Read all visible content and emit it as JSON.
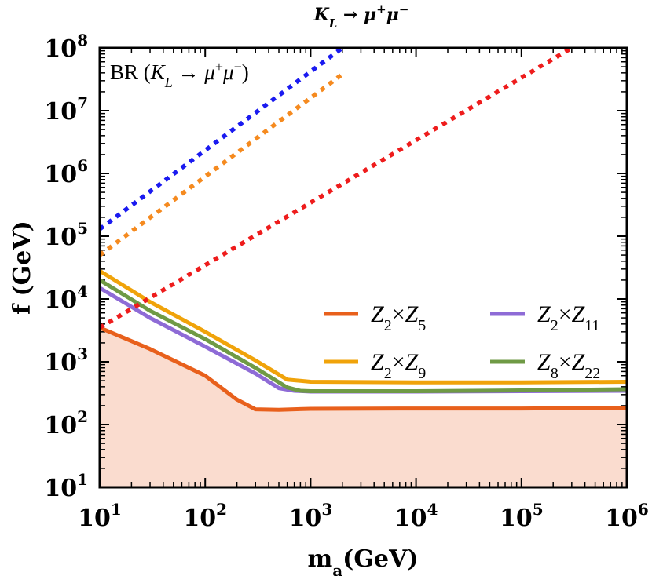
{
  "chart_data": {
    "type": "line",
    "title": "K_L → μ⁺μ⁻",
    "title_parts": {
      "main": "K",
      "sub": "L",
      "rest": " → μ",
      "sup1": "+",
      "mid": "μ",
      "sup2": "−"
    },
    "annotation": {
      "prefix": "BR (",
      "k": "K",
      "sub": "L",
      "arrow": " → μ",
      "sup1": "+",
      "mid": "μ",
      "sup2": "−",
      "suffix": ")"
    },
    "xlabel": {
      "main": "m",
      "sub": "a",
      "rest": "(GeV)"
    },
    "ylabel": "f (GeV)",
    "x_scale": "log",
    "y_scale": "log",
    "xlim": [
      10,
      1000000
    ],
    "ylim": [
      10,
      100000000
    ],
    "x_ticks": [
      {
        "base": "10",
        "exp": "1",
        "value": 10
      },
      {
        "base": "10",
        "exp": "2",
        "value": 100
      },
      {
        "base": "10",
        "exp": "3",
        "value": 1000
      },
      {
        "base": "10",
        "exp": "4",
        "value": 10000
      },
      {
        "base": "10",
        "exp": "5",
        "value": 100000
      },
      {
        "base": "10",
        "exp": "6",
        "value": 1000000
      }
    ],
    "y_ticks": [
      {
        "base": "10",
        "exp": "1",
        "value": 10
      },
      {
        "base": "10",
        "exp": "2",
        "value": 100
      },
      {
        "base": "10",
        "exp": "3",
        "value": 1000
      },
      {
        "base": "10",
        "exp": "4",
        "value": 10000
      },
      {
        "base": "10",
        "exp": "5",
        "value": 100000
      },
      {
        "base": "10",
        "exp": "6",
        "value": 1000000
      },
      {
        "base": "10",
        "exp": "7",
        "value": 10000000
      },
      {
        "base": "10",
        "exp": "8",
        "value": 100000000
      }
    ],
    "legend_position": "lower-right",
    "series": [
      {
        "name": "Z2×Z5",
        "legend": {
          "a": "Z",
          "as": "2",
          "b": "Z",
          "bs": "5"
        },
        "color": "#e8601c",
        "style": "solid",
        "x": [
          10,
          30,
          100,
          200,
          300,
          500,
          1000,
          10000,
          100000,
          1000000
        ],
        "y": [
          3500,
          1600,
          600,
          250,
          175,
          172,
          178,
          180,
          180,
          185
        ],
        "fill_below": true,
        "fill_color": "#fadccf"
      },
      {
        "name": "Z2×Z9",
        "legend": {
          "a": "Z",
          "as": "2",
          "b": "Z",
          "bs": "9"
        },
        "color": "#f0a30a",
        "style": "solid",
        "x": [
          10,
          30,
          100,
          300,
          600,
          1000,
          10000,
          100000,
          1000000
        ],
        "y": [
          28000,
          9000,
          3000,
          1050,
          520,
          480,
          470,
          470,
          480
        ]
      },
      {
        "name": "Z2×Z11",
        "legend": {
          "a": "Z",
          "as": "2",
          "b": "Z",
          "bs": "11"
        },
        "color": "#8e6bd6",
        "style": "solid",
        "x": [
          10,
          30,
          100,
          300,
          500,
          700,
          1000,
          10000,
          100000,
          1000000
        ],
        "y": [
          15000,
          5000,
          1750,
          650,
          380,
          345,
          335,
          335,
          340,
          345
        ]
      },
      {
        "name": "Z8×Z22",
        "legend": {
          "a": "Z",
          "as": "8",
          "b": "Z",
          "bs": "22"
        },
        "color": "#6f9a45",
        "style": "solid",
        "x": [
          10,
          30,
          100,
          300,
          600,
          800,
          1000,
          10000,
          100000,
          1000000
        ],
        "y": [
          20000,
          6500,
          2300,
          800,
          390,
          345,
          340,
          340,
          350,
          365
        ]
      },
      {
        "name": "dotted-blue",
        "color": "#1a1af0",
        "style": "dotted",
        "x": [
          10,
          2000
        ],
        "y": [
          130000,
          100000000
        ]
      },
      {
        "name": "dotted-orange",
        "color": "#f58a1f",
        "style": "dotted",
        "x": [
          10,
          2000
        ],
        "y": [
          50000,
          38000000
        ]
      },
      {
        "name": "dotted-red",
        "color": "#ee1c1c",
        "style": "dotted",
        "x": [
          10,
          300000
        ],
        "y": [
          3500,
          100000000
        ]
      }
    ]
  }
}
